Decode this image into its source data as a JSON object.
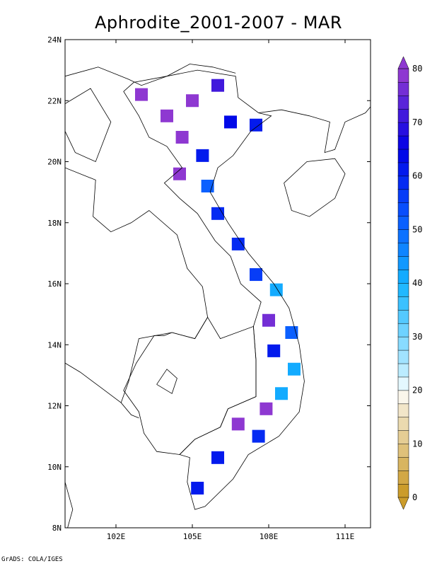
{
  "title": "Aphrodite_2001-2007  - MAR",
  "credit": "GrADS: COLA/IGES",
  "axes": {
    "lat_labels": [
      "24N",
      "22N",
      "20N",
      "18N",
      "16N",
      "14N",
      "12N",
      "10N",
      "8N"
    ],
    "lon_labels": [
      "102E",
      "105E",
      "108E",
      "111E"
    ]
  },
  "colorbar": {
    "min": 0,
    "max": 80,
    "step": 2.5,
    "tick_labels": [
      "80",
      "70",
      "60",
      "50",
      "40",
      "30",
      "20",
      "10",
      "0"
    ],
    "colors": {
      "brown_dark": "#c8961e",
      "brown_light": "#f5ecd6",
      "white": "#ffffff",
      "cyan_light": "#c8f0ff",
      "cyan": "#14b4ff",
      "blue": "#0a5aff",
      "blue_deep": "#0000e6",
      "purple": "#9b3dcf"
    }
  },
  "chart_data": {
    "type": "heatmap",
    "title": "Aphrodite_2001-2007  - MAR",
    "region": "Vietnam",
    "lon_range": [
      100,
      112
    ],
    "lat_range": [
      8,
      24
    ],
    "x_ticks": [
      102,
      105,
      108,
      111
    ],
    "y_ticks": [
      8,
      10,
      12,
      14,
      16,
      18,
      20,
      22,
      24
    ],
    "colorbar_range": [
      0,
      80
    ],
    "cells": [
      {
        "lon": 103.0,
        "lat": 22.2,
        "value": 80
      },
      {
        "lon": 104.0,
        "lat": 21.5,
        "value": 80
      },
      {
        "lon": 105.0,
        "lat": 22.0,
        "value": 78
      },
      {
        "lon": 106.0,
        "lat": 22.5,
        "value": 72
      },
      {
        "lon": 106.5,
        "lat": 21.3,
        "value": 64
      },
      {
        "lon": 107.5,
        "lat": 21.2,
        "value": 62
      },
      {
        "lon": 104.6,
        "lat": 20.8,
        "value": 80
      },
      {
        "lon": 105.4,
        "lat": 20.2,
        "value": 60
      },
      {
        "lon": 104.5,
        "lat": 19.6,
        "value": 78
      },
      {
        "lon": 105.6,
        "lat": 19.2,
        "value": 50
      },
      {
        "lon": 106.0,
        "lat": 18.3,
        "value": 58
      },
      {
        "lon": 106.8,
        "lat": 17.3,
        "value": 58
      },
      {
        "lon": 107.5,
        "lat": 16.3,
        "value": 55
      },
      {
        "lon": 108.3,
        "lat": 15.8,
        "value": 40
      },
      {
        "lon": 108.0,
        "lat": 14.8,
        "value": 75
      },
      {
        "lon": 108.9,
        "lat": 14.4,
        "value": 52
      },
      {
        "lon": 108.2,
        "lat": 13.8,
        "value": 62
      },
      {
        "lon": 109.0,
        "lat": 13.2,
        "value": 40
      },
      {
        "lon": 108.5,
        "lat": 12.4,
        "value": 42
      },
      {
        "lon": 107.9,
        "lat": 11.9,
        "value": 80
      },
      {
        "lon": 106.8,
        "lat": 11.4,
        "value": 78
      },
      {
        "lon": 107.6,
        "lat": 11.0,
        "value": 58
      },
      {
        "lon": 106.0,
        "lat": 10.3,
        "value": 62
      },
      {
        "lon": 105.2,
        "lat": 9.3,
        "value": 60
      }
    ]
  }
}
